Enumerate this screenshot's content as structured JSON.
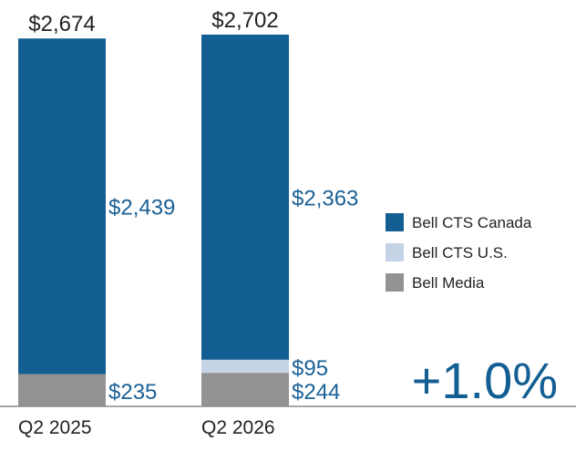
{
  "chart_data": {
    "type": "bar",
    "stacked": true,
    "categories": [
      "Q2 2025",
      "Q2 2026"
    ],
    "series": [
      {
        "name": "Bell Media",
        "values": [
          235,
          244
        ],
        "labels": [
          "$235",
          "$244"
        ],
        "color": "#939393"
      },
      {
        "name": "Bell CTS U.S.",
        "values": [
          0,
          95
        ],
        "labels": [
          "",
          "$95"
        ],
        "color": "#c5d3e6"
      },
      {
        "name": "Bell CTS Canada",
        "values": [
          2439,
          2363
        ],
        "labels": [
          "$2,439",
          "$2,363"
        ],
        "color": "#135e92"
      }
    ],
    "totals": [
      "$2,674",
      "$2,702"
    ],
    "legend": {
      "position": "right",
      "order": [
        "Bell CTS Canada",
        "Bell CTS U.S.",
        "Bell Media"
      ]
    },
    "change_label": "+1.0%",
    "ylim": [
      0,
      2702
    ],
    "grid": false,
    "label_color": "#1a6196",
    "text_color": "#222222"
  }
}
